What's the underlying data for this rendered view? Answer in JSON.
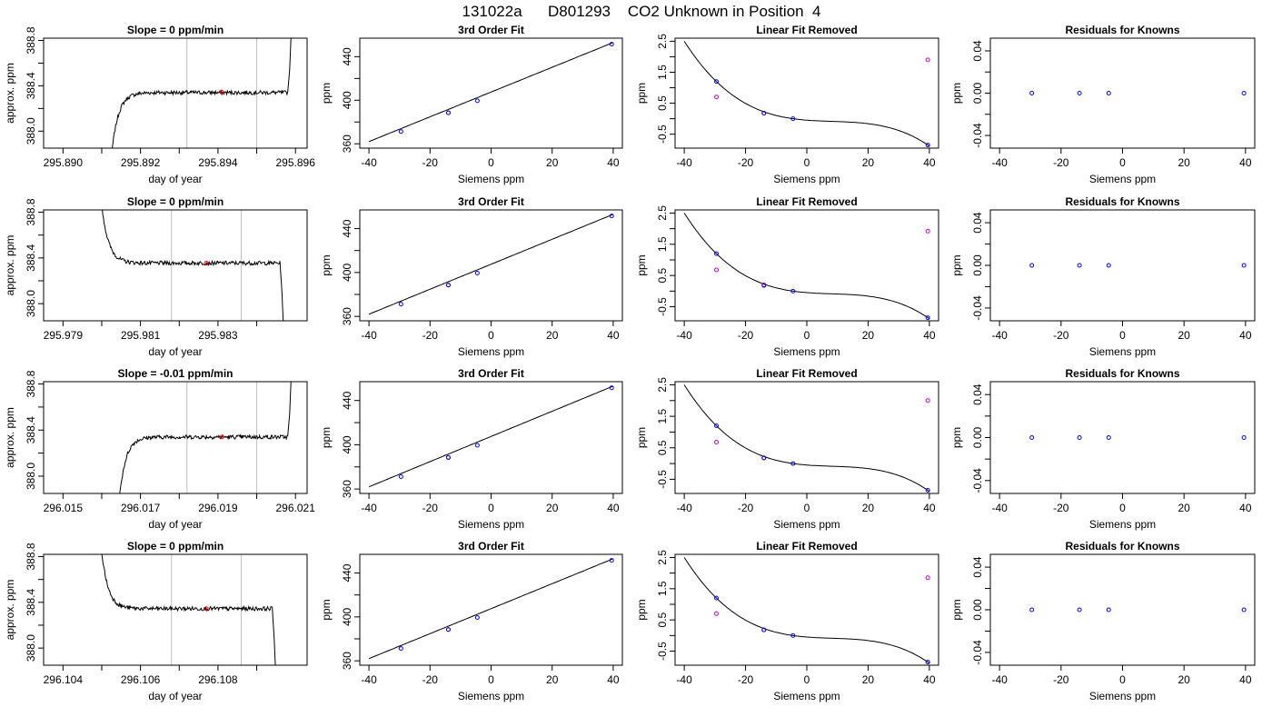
{
  "page_title": "131022a      D801293    CO2 Unknown in Position  4",
  "colors": {
    "axis": "#000000",
    "curve": "#000000",
    "gridline": "#bebebe",
    "known": "#0000ff",
    "unknown_fit": "#ff0000",
    "unknown_raw": "#cc00cc"
  },
  "chart_data": [
    {
      "row": 1,
      "type": "line",
      "title": "Slope =  0  ppm/min",
      "xlabel": "day of year",
      "ylabel": "approx. ppm",
      "xlim": [
        295.8895,
        295.8963
      ],
      "ylim": [
        387.85,
        388.82
      ],
      "xticks": [
        295.89,
        295.892,
        295.894,
        295.896
      ],
      "xtick_labels": [
        "295.890",
        "295.892",
        "295.894",
        "295.896"
      ],
      "minor_xticks": [
        295.891,
        295.893,
        295.895
      ],
      "yticks": [
        388.0,
        388.2,
        388.4,
        388.6,
        388.8
      ],
      "ytick_labels": [
        "388.0",
        "",
        "388.4",
        "",
        "388.8"
      ],
      "vlines": [
        295.8932,
        295.895
      ],
      "marker": {
        "x": 295.8941,
        "y": 388.343
      },
      "trace": {
        "start": 295.8912,
        "end": 295.8958,
        "plateau": 388.34,
        "shape": "rise"
      }
    },
    {
      "row": 1,
      "type": "line",
      "title": "3rd Order Fit",
      "xlabel": "Siemens ppm",
      "ylabel": "ppm",
      "xlim": [
        -43,
        43
      ],
      "ylim": [
        356,
        457
      ],
      "xticks": [
        -40,
        -20,
        0,
        20,
        40
      ],
      "xtick_labels": [
        "-40",
        "-20",
        "0",
        "20",
        "40"
      ],
      "yticks": [
        360,
        380,
        400,
        420,
        440
      ],
      "ytick_labels": [
        "360",
        "",
        "400",
        "",
        "440"
      ],
      "curve": {
        "type": "linear",
        "x": [
          -40,
          40
        ],
        "y": [
          362,
          453
        ]
      },
      "points": [
        {
          "x": -29.5,
          "y": 371.2,
          "kind": "known"
        },
        {
          "x": -14,
          "y": 388.5,
          "kind": "unknown"
        },
        {
          "x": -14,
          "y": 388.5,
          "kind": "known"
        },
        {
          "x": -4.5,
          "y": 399.5,
          "kind": "known"
        },
        {
          "x": 39.5,
          "y": 451.5,
          "kind": "known"
        }
      ]
    },
    {
      "row": 1,
      "type": "scatter",
      "title": "Linear Fit Removed",
      "xlabel": "Siemens ppm",
      "ylabel": "ppm",
      "xlim": [
        -43,
        43
      ],
      "ylim": [
        -0.95,
        2.6
      ],
      "xticks": [
        -40,
        -20,
        0,
        20,
        40
      ],
      "xtick_labels": [
        "-40",
        "-20",
        "0",
        "20",
        "40"
      ],
      "yticks": [
        -0.5,
        0,
        0.5,
        1,
        1.5,
        2,
        2.5
      ],
      "ytick_labels": [
        "-0.5",
        "",
        "0.5",
        "",
        "1.5",
        "",
        "2.5"
      ],
      "curve": {
        "type": "cubic",
        "x": [
          -40,
          -29.5,
          -4.5,
          39.5
        ],
        "y": [
          2.5,
          1.2,
          0,
          -0.85
        ]
      },
      "points": [
        {
          "x": -29.5,
          "y": 1.2,
          "kind": "known"
        },
        {
          "x": -29.5,
          "y": 0.7,
          "kind": "raw"
        },
        {
          "x": -14,
          "y": 0.18,
          "kind": "unknown"
        },
        {
          "x": -14,
          "y": 0.18,
          "kind": "known"
        },
        {
          "x": -4.5,
          "y": 0,
          "kind": "known"
        },
        {
          "x": 39.5,
          "y": 1.9,
          "kind": "raw"
        },
        {
          "x": 39.5,
          "y": -0.85,
          "kind": "known"
        }
      ]
    },
    {
      "row": 1,
      "type": "scatter",
      "title": "Residuals for Knowns",
      "xlabel": "Siemens ppm",
      "ylabel": "ppm",
      "xlim": [
        -43,
        43
      ],
      "ylim": [
        -0.052,
        0.052
      ],
      "xticks": [
        -40,
        -20,
        0,
        20,
        40
      ],
      "xtick_labels": [
        "-40",
        "-20",
        "0",
        "20",
        "40"
      ],
      "yticks": [
        -0.04,
        -0.02,
        0,
        0.02,
        0.04
      ],
      "ytick_labels": [
        "-0.04",
        "",
        "0.00",
        "",
        "0.04"
      ],
      "points": [
        {
          "x": -29.5,
          "y": 0,
          "kind": "known"
        },
        {
          "x": -14,
          "y": 0,
          "kind": "known"
        },
        {
          "x": -4.5,
          "y": 0,
          "kind": "known"
        },
        {
          "x": 39.5,
          "y": 0,
          "kind": "known"
        }
      ]
    },
    {
      "row": 2,
      "type": "line",
      "title": "Slope =  0  ppm/min",
      "xlabel": "day of year",
      "ylabel": "approx. ppm",
      "xlim": [
        295.9785,
        295.9853
      ],
      "ylim": [
        387.85,
        388.82
      ],
      "xticks": [
        295.979,
        295.981,
        295.983
      ],
      "xtick_labels": [
        "295.979",
        "295.981",
        "295.983"
      ],
      "minor_xticks": [
        295.98,
        295.982,
        295.984
      ],
      "yticks": [
        388.0,
        388.2,
        388.4,
        388.6,
        388.8
      ],
      "ytick_labels": [
        "388.0",
        "",
        "388.4",
        "",
        "388.8"
      ],
      "vlines": [
        295.9818,
        295.9836
      ],
      "marker": {
        "x": 295.9827,
        "y": 388.355
      },
      "trace": {
        "start": 295.9799,
        "end": 295.9846,
        "plateau": 388.355,
        "shape": "fall"
      }
    },
    {
      "row": 2,
      "type": "line",
      "title": "3rd Order Fit",
      "xlabel": "Siemens ppm",
      "ylabel": "ppm",
      "xlim": [
        -43,
        43
      ],
      "ylim": [
        356,
        457
      ],
      "xticks": [
        -40,
        -20,
        0,
        20,
        40
      ],
      "xtick_labels": [
        "-40",
        "-20",
        "0",
        "20",
        "40"
      ],
      "yticks": [
        360,
        380,
        400,
        420,
        440
      ],
      "ytick_labels": [
        "360",
        "",
        "400",
        "",
        "440"
      ],
      "curve": {
        "type": "linear",
        "x": [
          -40,
          40
        ],
        "y": [
          362,
          453
        ]
      },
      "points": [
        {
          "x": -29.5,
          "y": 371.2,
          "kind": "known"
        },
        {
          "x": -14,
          "y": 388.6,
          "kind": "unknown"
        },
        {
          "x": -14,
          "y": 388.5,
          "kind": "known"
        },
        {
          "x": -4.5,
          "y": 399.5,
          "kind": "known"
        },
        {
          "x": 39.5,
          "y": 451.5,
          "kind": "known"
        }
      ]
    },
    {
      "row": 2,
      "type": "scatter",
      "title": "Linear Fit Removed",
      "xlabel": "Siemens ppm",
      "ylabel": "ppm",
      "xlim": [
        -43,
        43
      ],
      "ylim": [
        -0.95,
        2.6
      ],
      "xticks": [
        -40,
        -20,
        0,
        20,
        40
      ],
      "xtick_labels": [
        "-40",
        "-20",
        "0",
        "20",
        "40"
      ],
      "yticks": [
        -0.5,
        0,
        0.5,
        1,
        1.5,
        2,
        2.5
      ],
      "ytick_labels": [
        "-0.5",
        "",
        "0.5",
        "",
        "1.5",
        "",
        "2.5"
      ],
      "curve": {
        "type": "cubic",
        "x": [
          -40,
          -29.5,
          -4.5,
          39.5
        ],
        "y": [
          2.5,
          1.2,
          0,
          -0.85
        ]
      },
      "points": [
        {
          "x": -29.5,
          "y": 1.2,
          "kind": "known"
        },
        {
          "x": -29.5,
          "y": 0.68,
          "kind": "raw"
        },
        {
          "x": -14,
          "y": 0.2,
          "kind": "unknown"
        },
        {
          "x": -14,
          "y": 0.18,
          "kind": "known"
        },
        {
          "x": -4.5,
          "y": 0,
          "kind": "known"
        },
        {
          "x": 39.5,
          "y": 1.92,
          "kind": "raw"
        },
        {
          "x": 39.5,
          "y": -0.85,
          "kind": "known"
        }
      ]
    },
    {
      "row": 2,
      "type": "scatter",
      "title": "Residuals for Knowns",
      "xlabel": "Siemens ppm",
      "ylabel": "ppm",
      "xlim": [
        -43,
        43
      ],
      "ylim": [
        -0.052,
        0.052
      ],
      "xticks": [
        -40,
        -20,
        0,
        20,
        40
      ],
      "xtick_labels": [
        "-40",
        "-20",
        "0",
        "20",
        "40"
      ],
      "yticks": [
        -0.04,
        -0.02,
        0,
        0.02,
        0.04
      ],
      "ytick_labels": [
        "-0.04",
        "",
        "0.00",
        "",
        "0.04"
      ],
      "points": [
        {
          "x": -29.5,
          "y": 0,
          "kind": "known"
        },
        {
          "x": -14,
          "y": 0,
          "kind": "known"
        },
        {
          "x": -4.5,
          "y": 0,
          "kind": "known"
        },
        {
          "x": 39.5,
          "y": 0,
          "kind": "known"
        }
      ]
    },
    {
      "row": 3,
      "type": "line",
      "title": "Slope =  -0.01  ppm/min",
      "xlabel": "day of year",
      "ylabel": "approx. ppm",
      "xlim": [
        296.0145,
        296.0213
      ],
      "ylim": [
        387.85,
        388.82
      ],
      "xticks": [
        296.015,
        296.017,
        296.019,
        296.021
      ],
      "xtick_labels": [
        "296.015",
        "296.017",
        "296.019",
        "296.021"
      ],
      "minor_xticks": [
        296.016,
        296.018,
        296.02
      ],
      "yticks": [
        388.0,
        388.2,
        388.4,
        388.6,
        388.8
      ],
      "ytick_labels": [
        "388.0",
        "",
        "388.4",
        "",
        "388.8"
      ],
      "vlines": [
        296.0182,
        296.02
      ],
      "marker": {
        "x": 296.0191,
        "y": 388.34
      },
      "trace": {
        "start": 296.0164,
        "end": 296.0208,
        "plateau": 388.34,
        "shape": "rise"
      }
    },
    {
      "row": 3,
      "type": "line",
      "title": "3rd Order Fit",
      "xlabel": "Siemens ppm",
      "ylabel": "ppm",
      "xlim": [
        -43,
        43
      ],
      "ylim": [
        356,
        457
      ],
      "xticks": [
        -40,
        -20,
        0,
        20,
        40
      ],
      "xtick_labels": [
        "-40",
        "-20",
        "0",
        "20",
        "40"
      ],
      "yticks": [
        360,
        380,
        400,
        420,
        440
      ],
      "ytick_labels": [
        "360",
        "",
        "400",
        "",
        "440"
      ],
      "curve": {
        "type": "linear",
        "x": [
          -40,
          40
        ],
        "y": [
          362,
          453
        ]
      },
      "points": [
        {
          "x": -29.5,
          "y": 371.2,
          "kind": "known"
        },
        {
          "x": -14,
          "y": 388.5,
          "kind": "unknown"
        },
        {
          "x": -14,
          "y": 388.5,
          "kind": "known"
        },
        {
          "x": -4.5,
          "y": 399.5,
          "kind": "known"
        },
        {
          "x": 39.5,
          "y": 451.5,
          "kind": "known"
        }
      ]
    },
    {
      "row": 3,
      "type": "scatter",
      "title": "Linear Fit Removed",
      "xlabel": "Siemens ppm",
      "ylabel": "ppm",
      "xlim": [
        -43,
        43
      ],
      "ylim": [
        -0.95,
        2.6
      ],
      "xticks": [
        -40,
        -20,
        0,
        20,
        40
      ],
      "xtick_labels": [
        "-40",
        "-20",
        "0",
        "20",
        "40"
      ],
      "yticks": [
        -0.5,
        0,
        0.5,
        1,
        1.5,
        2,
        2.5
      ],
      "ytick_labels": [
        "-0.5",
        "",
        "0.5",
        "",
        "1.5",
        "",
        "2.5"
      ],
      "curve": {
        "type": "cubic",
        "x": [
          -40,
          -29.5,
          -4.5,
          39.5
        ],
        "y": [
          2.5,
          1.2,
          0,
          -0.85
        ]
      },
      "points": [
        {
          "x": -29.5,
          "y": 1.2,
          "kind": "known"
        },
        {
          "x": -29.5,
          "y": 0.68,
          "kind": "raw"
        },
        {
          "x": -14,
          "y": 0.18,
          "kind": "unknown"
        },
        {
          "x": -14,
          "y": 0.18,
          "kind": "known"
        },
        {
          "x": -4.5,
          "y": 0,
          "kind": "known"
        },
        {
          "x": 39.5,
          "y": 2.0,
          "kind": "raw"
        },
        {
          "x": 39.5,
          "y": -0.85,
          "kind": "known"
        }
      ]
    },
    {
      "row": 3,
      "type": "scatter",
      "title": "Residuals for Knowns",
      "xlabel": "Siemens ppm",
      "ylabel": "ppm",
      "xlim": [
        -43,
        43
      ],
      "ylim": [
        -0.052,
        0.052
      ],
      "xticks": [
        -40,
        -20,
        0,
        20,
        40
      ],
      "xtick_labels": [
        "-40",
        "-20",
        "0",
        "20",
        "40"
      ],
      "yticks": [
        -0.04,
        -0.02,
        0,
        0.02,
        0.04
      ],
      "ytick_labels": [
        "-0.04",
        "",
        "0.00",
        "",
        "0.04"
      ],
      "points": [
        {
          "x": -29.5,
          "y": 0,
          "kind": "known"
        },
        {
          "x": -14,
          "y": 0,
          "kind": "known"
        },
        {
          "x": -4.5,
          "y": 0,
          "kind": "known"
        },
        {
          "x": 39.5,
          "y": 0,
          "kind": "known"
        }
      ]
    },
    {
      "row": 4,
      "type": "line",
      "title": "Slope =  0  ppm/min",
      "xlabel": "day of year",
      "ylabel": "approx. ppm",
      "xlim": [
        296.1035,
        296.1103
      ],
      "ylim": [
        387.85,
        388.82
      ],
      "xticks": [
        296.104,
        296.106,
        296.108
      ],
      "xtick_labels": [
        "296.104",
        "296.106",
        "296.108"
      ],
      "minor_xticks": [
        296.105,
        296.107,
        296.109
      ],
      "yticks": [
        388.0,
        388.2,
        388.4,
        388.6,
        388.8
      ],
      "ytick_labels": [
        "388.0",
        "",
        "388.4",
        "",
        "388.8"
      ],
      "vlines": [
        296.1068,
        296.1086
      ],
      "marker": {
        "x": 296.1077,
        "y": 388.345
      },
      "trace": {
        "start": 296.1049,
        "end": 296.1094,
        "plateau": 388.345,
        "shape": "fall"
      }
    },
    {
      "row": 4,
      "type": "line",
      "title": "3rd Order Fit",
      "xlabel": "Siemens ppm",
      "ylabel": "ppm",
      "xlim": [
        -43,
        43
      ],
      "ylim": [
        356,
        457
      ],
      "xticks": [
        -40,
        -20,
        0,
        20,
        40
      ],
      "xtick_labels": [
        "-40",
        "-20",
        "0",
        "20",
        "40"
      ],
      "yticks": [
        360,
        380,
        400,
        420,
        440
      ],
      "ytick_labels": [
        "360",
        "",
        "400",
        "",
        "440"
      ],
      "curve": {
        "type": "linear",
        "x": [
          -40,
          40
        ],
        "y": [
          362,
          453
        ]
      },
      "points": [
        {
          "x": -29.5,
          "y": 371.2,
          "kind": "known"
        },
        {
          "x": -14,
          "y": 388.5,
          "kind": "unknown"
        },
        {
          "x": -14,
          "y": 388.5,
          "kind": "known"
        },
        {
          "x": -4.5,
          "y": 399.5,
          "kind": "known"
        },
        {
          "x": 39.5,
          "y": 451.5,
          "kind": "known"
        }
      ]
    },
    {
      "row": 4,
      "type": "scatter",
      "title": "Linear Fit Removed",
      "xlabel": "Siemens ppm",
      "ylabel": "ppm",
      "xlim": [
        -43,
        43
      ],
      "ylim": [
        -0.95,
        2.6
      ],
      "xticks": [
        -40,
        -20,
        0,
        20,
        40
      ],
      "xtick_labels": [
        "-40",
        "-20",
        "0",
        "20",
        "40"
      ],
      "yticks": [
        -0.5,
        0,
        0.5,
        1,
        1.5,
        2,
        2.5
      ],
      "ytick_labels": [
        "-0.5",
        "",
        "0.5",
        "",
        "1.5",
        "",
        "2.5"
      ],
      "curve": {
        "type": "cubic",
        "x": [
          -40,
          -29.5,
          -4.5,
          39.5
        ],
        "y": [
          2.5,
          1.2,
          0,
          -0.85
        ]
      },
      "points": [
        {
          "x": -29.5,
          "y": 1.2,
          "kind": "known"
        },
        {
          "x": -29.5,
          "y": 0.7,
          "kind": "raw"
        },
        {
          "x": -14,
          "y": 0.18,
          "kind": "unknown"
        },
        {
          "x": -14,
          "y": 0.18,
          "kind": "known"
        },
        {
          "x": -4.5,
          "y": 0,
          "kind": "known"
        },
        {
          "x": 39.5,
          "y": 1.85,
          "kind": "raw"
        },
        {
          "x": 39.5,
          "y": -0.85,
          "kind": "known"
        }
      ]
    },
    {
      "row": 4,
      "type": "scatter",
      "title": "Residuals for Knowns",
      "xlabel": "Siemens ppm",
      "ylabel": "ppm",
      "xlim": [
        -43,
        43
      ],
      "ylim": [
        -0.052,
        0.052
      ],
      "xticks": [
        -40,
        -20,
        0,
        20,
        40
      ],
      "xtick_labels": [
        "-40",
        "-20",
        "0",
        "20",
        "40"
      ],
      "yticks": [
        -0.04,
        -0.02,
        0,
        0.02,
        0.04
      ],
      "ytick_labels": [
        "-0.04",
        "",
        "0.00",
        "",
        "0.04"
      ],
      "points": [
        {
          "x": -29.5,
          "y": 0,
          "kind": "known"
        },
        {
          "x": -14,
          "y": 0,
          "kind": "known"
        },
        {
          "x": -4.5,
          "y": 0,
          "kind": "known"
        },
        {
          "x": 39.5,
          "y": 0,
          "kind": "known"
        }
      ]
    }
  ]
}
